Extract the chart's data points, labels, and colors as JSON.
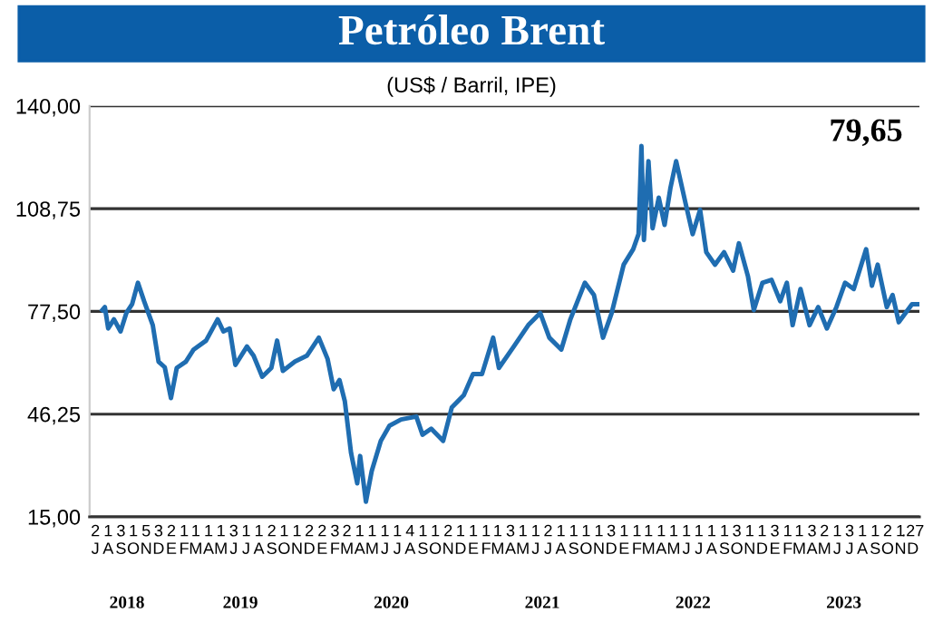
{
  "chart_data": {
    "type": "line",
    "title": "Petróleo Brent",
    "subtitle": "(US$ / Barril, IPE)",
    "annotations": [
      "79,65",
      "2018",
      "2019",
      "2020",
      "2021",
      "2022",
      "2023"
    ],
    "series": [
      {
        "color": "#1f6db1",
        "x": [
          "2018-08-01",
          "2018-08-07",
          "2018-08-15",
          "2018-08-29",
          "2018-09-14",
          "2018-09-28",
          "2018-10-12",
          "2018-10-26",
          "2018-11-10",
          "2018-12-01",
          "2018-12-15",
          "2018-12-30",
          "2019-01-14",
          "2019-01-28",
          "2019-02-19",
          "2019-03-10",
          "2019-04-09",
          "2019-05-07",
          "2019-05-21",
          "2019-06-05",
          "2019-06-19",
          "2019-07-17",
          "2019-08-02",
          "2019-08-23",
          "2019-09-14",
          "2019-09-28",
          "2019-10-12",
          "2019-11-10",
          "2019-12-09",
          "2020-01-07",
          "2020-01-28",
          "2020-02-12",
          "2020-02-26",
          "2020-03-10",
          "2020-03-25",
          "2020-04-09",
          "2020-04-16",
          "2020-04-30",
          "2020-05-14",
          "2020-06-05",
          "2020-06-26",
          "2020-07-24",
          "2020-08-30",
          "2020-09-14",
          "2020-10-05",
          "2020-11-03",
          "2020-11-24",
          "2020-12-23",
          "2021-01-14",
          "2021-02-05",
          "2021-03-04",
          "2021-03-18",
          "2021-04-23",
          "2021-05-28",
          "2021-06-26",
          "2021-07-18",
          "2021-08-16",
          "2021-09-07",
          "2021-10-12",
          "2021-11-03",
          "2021-11-25",
          "2021-12-16",
          "2022-01-14",
          "2022-02-06",
          "2022-02-19",
          "2022-02-26",
          "2022-03-04",
          "2022-03-15",
          "2022-03-25",
          "2022-04-09",
          "2022-04-23",
          "2022-05-07",
          "2022-05-21",
          "2022-06-13",
          "2022-06-30",
          "2022-07-18",
          "2022-08-02",
          "2022-08-23",
          "2022-09-14",
          "2022-10-06",
          "2022-10-20",
          "2022-11-11",
          "2022-11-25",
          "2022-12-16",
          "2023-01-07",
          "2023-01-28",
          "2023-02-13",
          "2023-02-27",
          "2023-03-18",
          "2023-04-09",
          "2023-04-30",
          "2023-05-21",
          "2023-06-13",
          "2023-07-04",
          "2023-07-25",
          "2023-08-24",
          "2023-09-07",
          "2023-09-21",
          "2023-10-13",
          "2023-10-27",
          "2023-11-11",
          "2023-12-13",
          "2023-12-27"
        ],
        "values": [
          77.9,
          78.8,
          72.3,
          75.1,
          71.4,
          77.0,
          79.7,
          86.2,
          80.6,
          73.3,
          62.2,
          60.5,
          51.1,
          60.3,
          62.2,
          65.9,
          68.6,
          75.1,
          71.4,
          72.3,
          61.2,
          66.8,
          64.0,
          57.6,
          60.3,
          68.6,
          59.4,
          62.2,
          64.0,
          69.5,
          63.1,
          53.8,
          56.6,
          50.1,
          34.4,
          25.2,
          33.5,
          19.6,
          28.9,
          38.1,
          42.7,
          44.6,
          45.5,
          40.0,
          41.8,
          38.1,
          48.3,
          52.0,
          58.4,
          58.4,
          69.5,
          60.3,
          66.8,
          73.3,
          77.0,
          69.5,
          65.9,
          75.1,
          86.2,
          82.5,
          69.5,
          77.0,
          91.7,
          96.4,
          101.0,
          127.8,
          99.2,
          123.2,
          102.8,
          112.1,
          103.8,
          114.9,
          123.2,
          110.3,
          101.0,
          108.4,
          95.5,
          91.7,
          95.5,
          89.9,
          98.2,
          88.1,
          77.9,
          86.2,
          87.1,
          80.6,
          86.2,
          73.3,
          84.3,
          73.3,
          78.8,
          72.3,
          78.8,
          86.2,
          84.3,
          96.4,
          85.3,
          91.7,
          78.8,
          82.5,
          74.2,
          79.7,
          79.7
        ]
      }
    ],
    "xlim": [
      "2018-07-01",
      "2023-12-31"
    ],
    "xticks": [
      {
        "value": "2018-07-15",
        "label": "2\nJ"
      },
      {
        "value": "2018-08-15",
        "label": "1\nA"
      },
      {
        "value": "2018-09-15",
        "label": "3\nS"
      },
      {
        "value": "2018-10-15",
        "label": "1\nO"
      },
      {
        "value": "2018-11-15",
        "label": "5\nN"
      },
      {
        "value": "2018-12-15",
        "label": "3\nD"
      },
      {
        "value": "2019-01-15",
        "label": "2\nE"
      },
      {
        "value": "2019-02-15",
        "label": "1\nF"
      },
      {
        "value": "2019-03-15",
        "label": "1\nM"
      },
      {
        "value": "2019-04-15",
        "label": "1\nA"
      },
      {
        "value": "2019-05-15",
        "label": "1\nM"
      },
      {
        "value": "2019-06-15",
        "label": "3\nJ"
      },
      {
        "value": "2019-07-15",
        "label": "1\nJ"
      },
      {
        "value": "2019-08-15",
        "label": "1\nA"
      },
      {
        "value": "2019-09-15",
        "label": "2\nS"
      },
      {
        "value": "2019-10-15",
        "label": "1\nO"
      },
      {
        "value": "2019-11-15",
        "label": "1\nN"
      },
      {
        "value": "2019-12-15",
        "label": "2\nD"
      },
      {
        "value": "2020-01-15",
        "label": "2\nE"
      },
      {
        "value": "2020-02-15",
        "label": "3\nF"
      },
      {
        "value": "2020-03-15",
        "label": "2\nM"
      },
      {
        "value": "2020-04-15",
        "label": "1\nA"
      },
      {
        "value": "2020-05-15",
        "label": "1\nM"
      },
      {
        "value": "2020-06-15",
        "label": "1\nJ"
      },
      {
        "value": "2020-07-15",
        "label": "1\nJ"
      },
      {
        "value": "2020-08-15",
        "label": "4\nA"
      },
      {
        "value": "2020-09-15",
        "label": "1\nS"
      },
      {
        "value": "2020-10-15",
        "label": "1\nO"
      },
      {
        "value": "2020-11-15",
        "label": "2\nN"
      },
      {
        "value": "2020-12-15",
        "label": "1\nD"
      },
      {
        "value": "2021-01-15",
        "label": "1\nE"
      },
      {
        "value": "2021-02-15",
        "label": "1\nF"
      },
      {
        "value": "2021-03-15",
        "label": "1\nM"
      },
      {
        "value": "2021-04-15",
        "label": "3\nA"
      },
      {
        "value": "2021-05-15",
        "label": "1\nM"
      },
      {
        "value": "2021-06-15",
        "label": "1\nJ"
      },
      {
        "value": "2021-07-15",
        "label": "2\nJ"
      },
      {
        "value": "2021-08-15",
        "label": "1\nA"
      },
      {
        "value": "2021-09-15",
        "label": "1\nS"
      },
      {
        "value": "2021-10-15",
        "label": "1\nO"
      },
      {
        "value": "2021-11-15",
        "label": "1\nN"
      },
      {
        "value": "2021-12-15",
        "label": "3\nD"
      },
      {
        "value": "2022-01-15",
        "label": "1\nE"
      },
      {
        "value": "2022-02-15",
        "label": "1\nF"
      },
      {
        "value": "2022-03-15",
        "label": "1\nM"
      },
      {
        "value": "2022-04-15",
        "label": "1\nA"
      },
      {
        "value": "2022-05-15",
        "label": "1\nM"
      },
      {
        "value": "2022-06-15",
        "label": "1\nJ"
      },
      {
        "value": "2022-07-15",
        "label": "1\nJ"
      },
      {
        "value": "2022-08-15",
        "label": "1\nA"
      },
      {
        "value": "2022-09-15",
        "label": "1\nS"
      },
      {
        "value": "2022-10-15",
        "label": "3\nO"
      },
      {
        "value": "2022-11-15",
        "label": "1\nN"
      },
      {
        "value": "2022-12-15",
        "label": "1\nD"
      },
      {
        "value": "2023-01-15",
        "label": "3\nE"
      },
      {
        "value": "2023-02-15",
        "label": "1\nF"
      },
      {
        "value": "2023-03-15",
        "label": "1\nM"
      },
      {
        "value": "2023-04-15",
        "label": "3\nA"
      },
      {
        "value": "2023-05-15",
        "label": "2\nM"
      },
      {
        "value": "2023-06-15",
        "label": "1\nJ"
      },
      {
        "value": "2023-07-15",
        "label": "3\nJ"
      },
      {
        "value": "2023-08-15",
        "label": "1\nA"
      },
      {
        "value": "2023-09-15",
        "label": "1\nS"
      },
      {
        "value": "2023-10-15",
        "label": "2\nO"
      },
      {
        "value": "2023-11-15",
        "label": "1\nN"
      },
      {
        "value": "2023-12-15",
        "label": ".27\nD"
      }
    ],
    "ylim": [
      15,
      140
    ],
    "yticks": [
      {
        "value": 15,
        "label": "15,00"
      },
      {
        "value": 46.25,
        "label": "46,25"
      },
      {
        "value": 77.5,
        "label": "77,50"
      },
      {
        "value": 108.75,
        "label": "108,75"
      },
      {
        "value": 140,
        "label": "140,00"
      }
    ],
    "grid": "y",
    "legend": false
  }
}
